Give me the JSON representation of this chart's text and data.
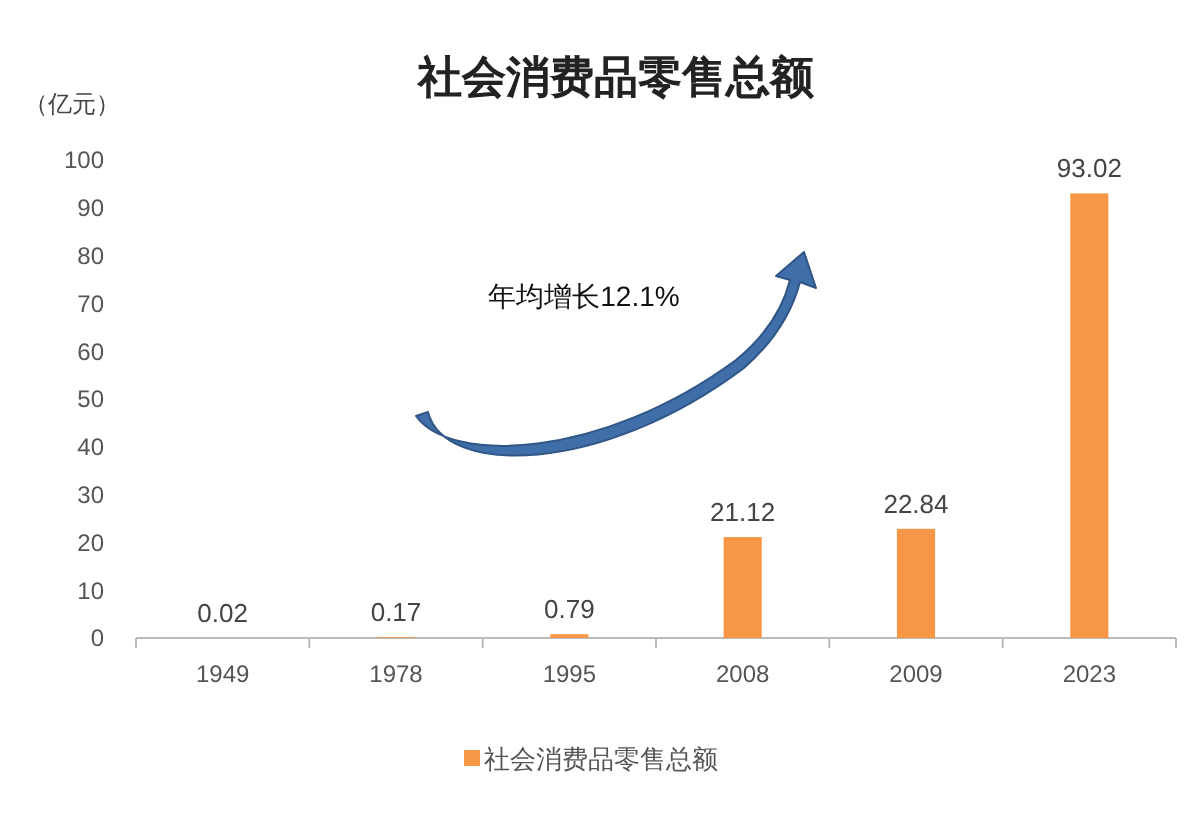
{
  "chart_data": {
    "type": "bar",
    "title": "社会消费品零售总额",
    "ylabel": "（亿元）",
    "categories": [
      "1949",
      "1978",
      "1995",
      "2008",
      "2009",
      "2023"
    ],
    "series": [
      {
        "name": "社会消费品零售总额",
        "color": "#f79646",
        "values": [
          0.02,
          0.17,
          0.79,
          21.12,
          22.84,
          93.02
        ]
      }
    ],
    "ylim": [
      0,
      100
    ],
    "yticks": [
      0,
      10,
      20,
      30,
      40,
      50,
      60,
      70,
      80,
      90,
      100
    ],
    "data_labels": true,
    "grid": false,
    "legend": "bottom",
    "annotations": [
      "年均增长12.1%"
    ]
  }
}
